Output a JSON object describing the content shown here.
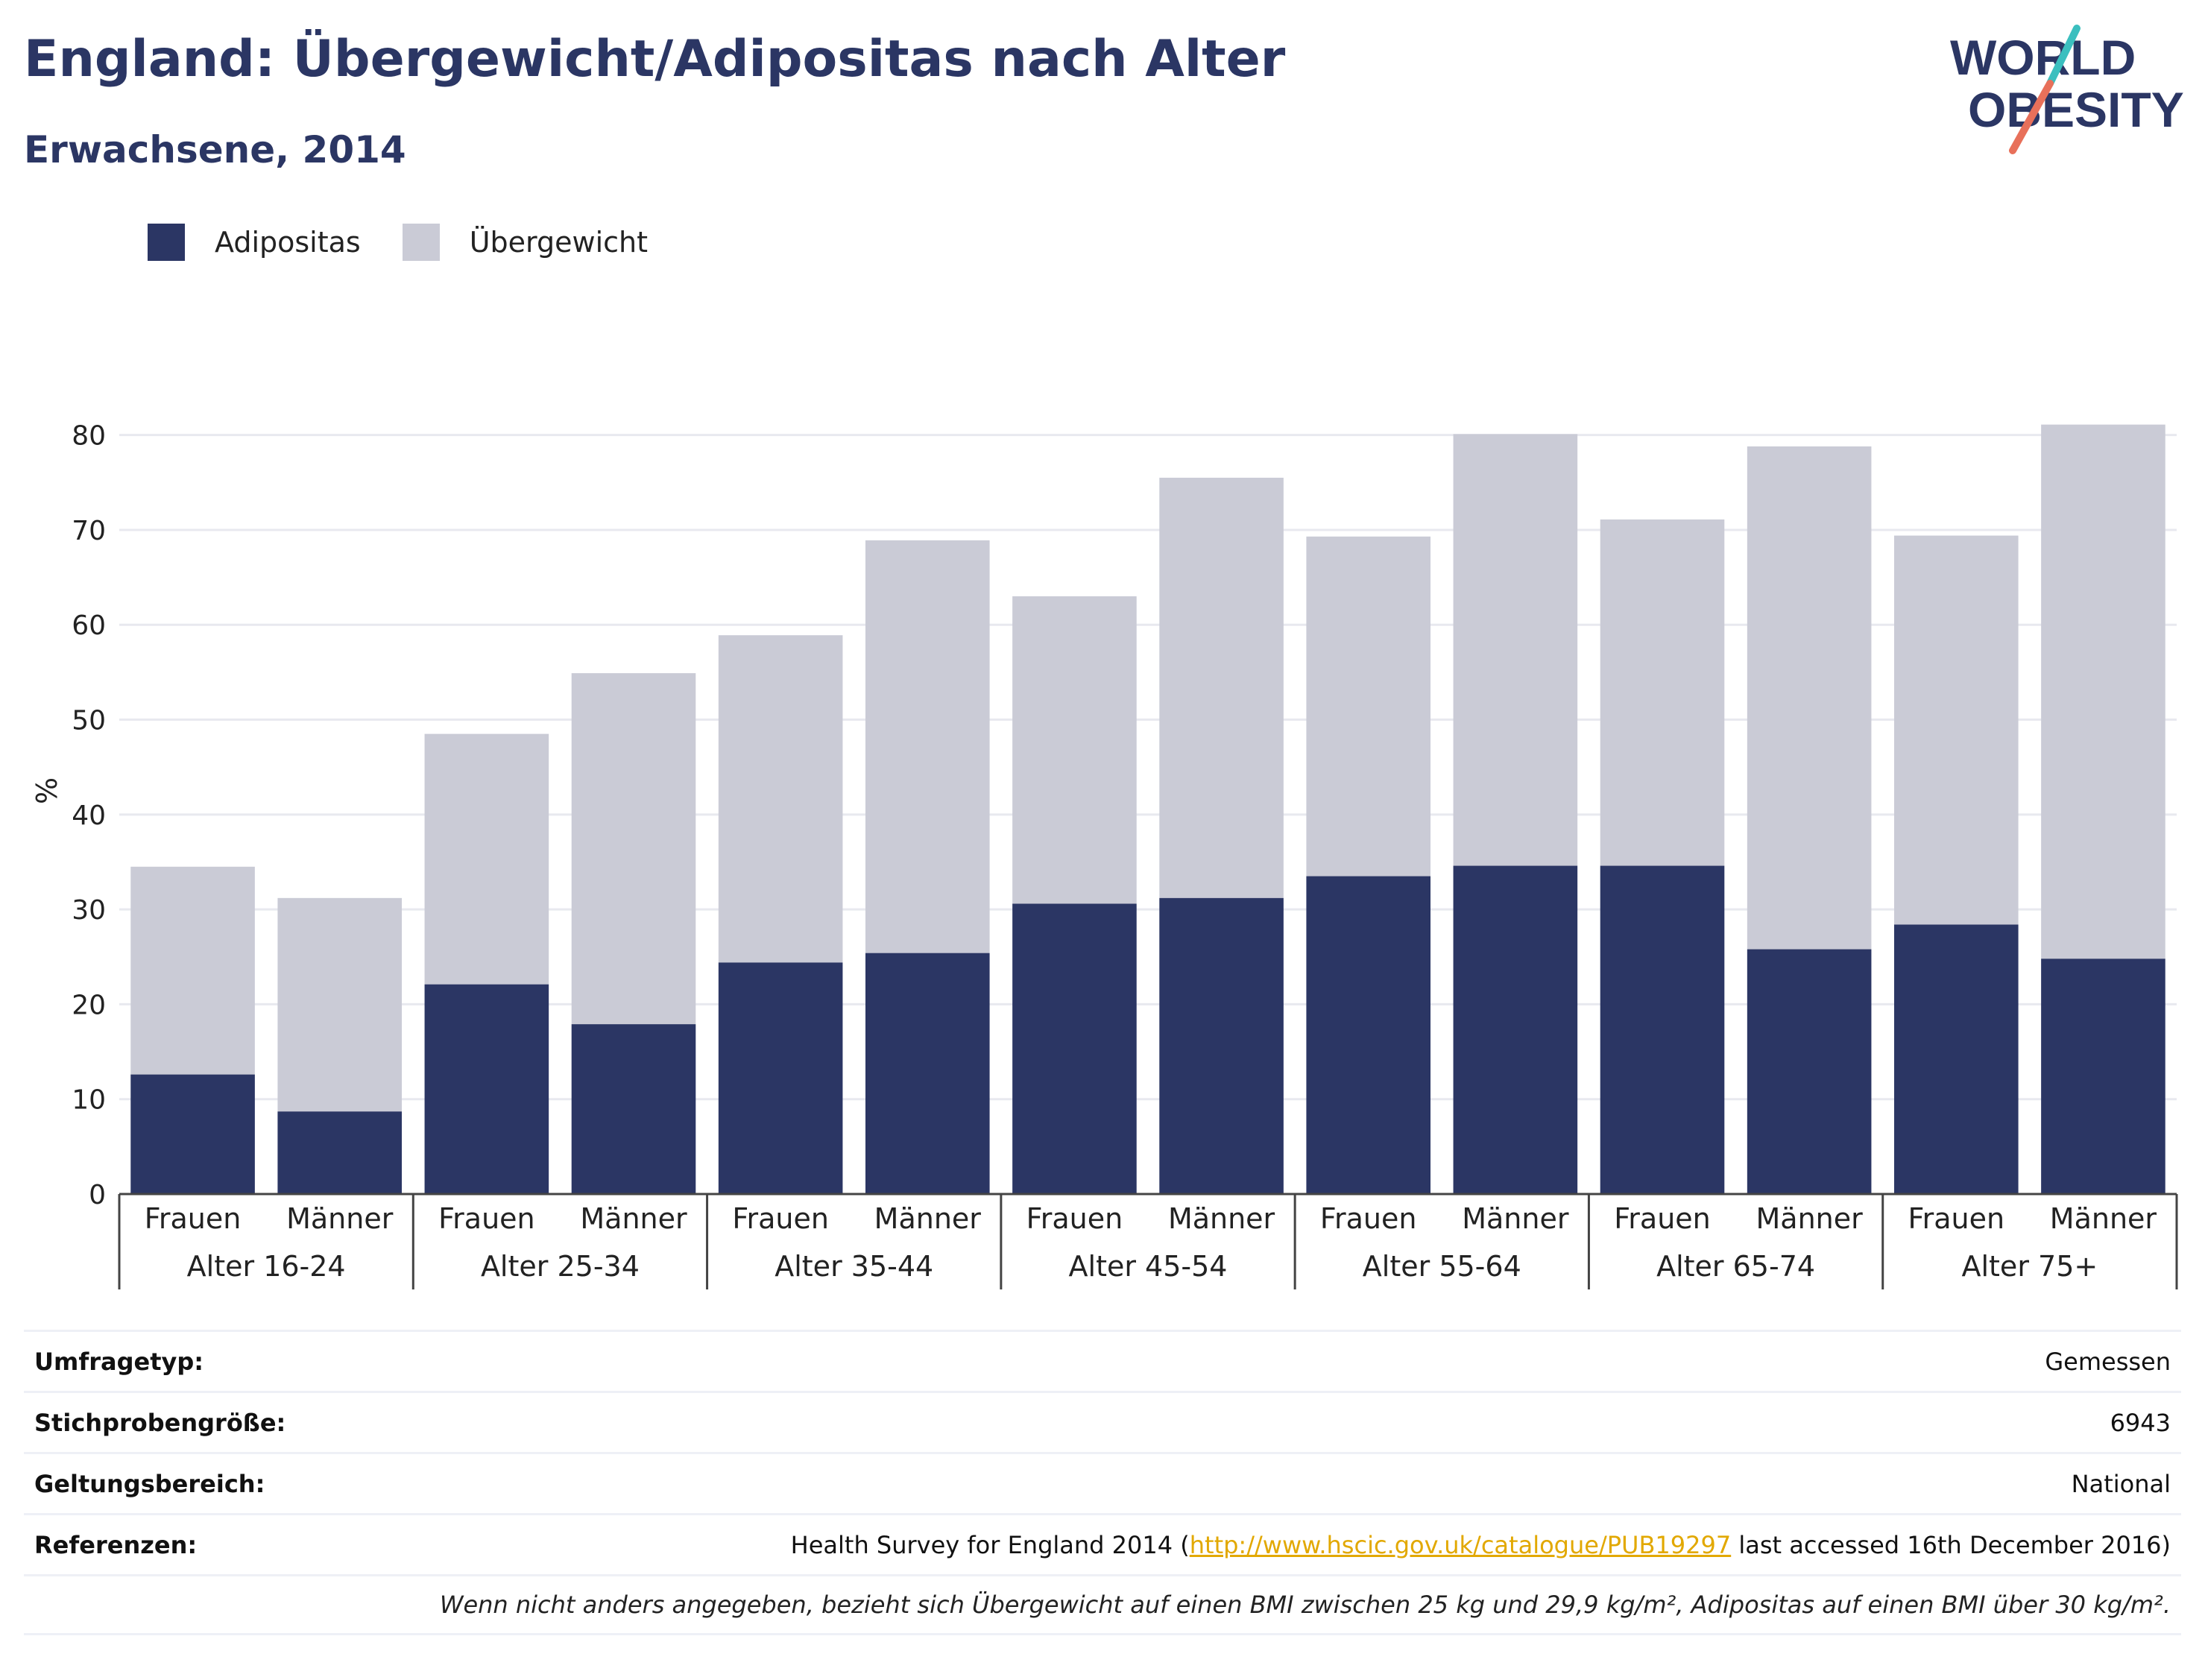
{
  "title": "England: Übergewicht/Adipositas nach Alter",
  "subtitle": "Erwachsene, 2014",
  "logo": {
    "line1": "WORLD",
    "line2": "OBESITY"
  },
  "colors": {
    "obesity": "#2b3664",
    "overweight": "#cacbd6",
    "accent_teal": "#3bbfbf",
    "accent_coral": "#e8705a",
    "grid": "#e8e9ef"
  },
  "legend": [
    {
      "label": "Adipositas",
      "color": "#2b3664"
    },
    {
      "label": "Übergewicht",
      "color": "#cacbd6"
    }
  ],
  "chart_data": {
    "type": "bar",
    "stacked": true,
    "ylabel": "%",
    "ylim": [
      0,
      85
    ],
    "yticks": [
      0,
      10,
      20,
      30,
      40,
      50,
      60,
      70,
      80
    ],
    "grid": true,
    "legend_position": "top-left",
    "groups": [
      "Alter 16-24",
      "Alter 25-34",
      "Alter 35-44",
      "Alter 45-54",
      "Alter 55-64",
      "Alter 65-74",
      "Alter 75+"
    ],
    "categories": [
      "Frauen",
      "Männer",
      "Frauen",
      "Männer",
      "Frauen",
      "Männer",
      "Frauen",
      "Männer",
      "Frauen",
      "Männer",
      "Frauen",
      "Männer",
      "Frauen",
      "Männer"
    ],
    "series": [
      {
        "name": "Adipositas",
        "values": [
          12.6,
          8.7,
          22.1,
          17.9,
          24.4,
          25.4,
          30.6,
          31.2,
          33.5,
          34.6,
          34.6,
          25.8,
          28.4,
          24.8
        ]
      },
      {
        "name": "Übergewicht",
        "values": [
          21.9,
          22.5,
          26.4,
          37.0,
          34.5,
          43.5,
          32.4,
          44.3,
          35.8,
          45.5,
          36.5,
          53.0,
          41.0,
          56.3
        ]
      }
    ]
  },
  "meta": {
    "rows": [
      {
        "label": "Umfragetyp:",
        "value": "Gemessen"
      },
      {
        "label": "Stichprobengröße:",
        "value": "6943"
      },
      {
        "label": "Geltungsbereich:",
        "value": "National"
      }
    ],
    "references": {
      "label": "Referenzen:",
      "prefix": "Health Survey for England 2014 (",
      "link": "http://www.hscic.gov.uk/catalogue/PUB19297",
      "suffix": " last accessed 16th December 2016)"
    },
    "note": "Wenn nicht anders angegeben, bezieht sich Übergewicht auf einen BMI zwischen 25 kg und 29,9 kg/m², Adipositas auf einen BMI über 30 kg/m²."
  }
}
